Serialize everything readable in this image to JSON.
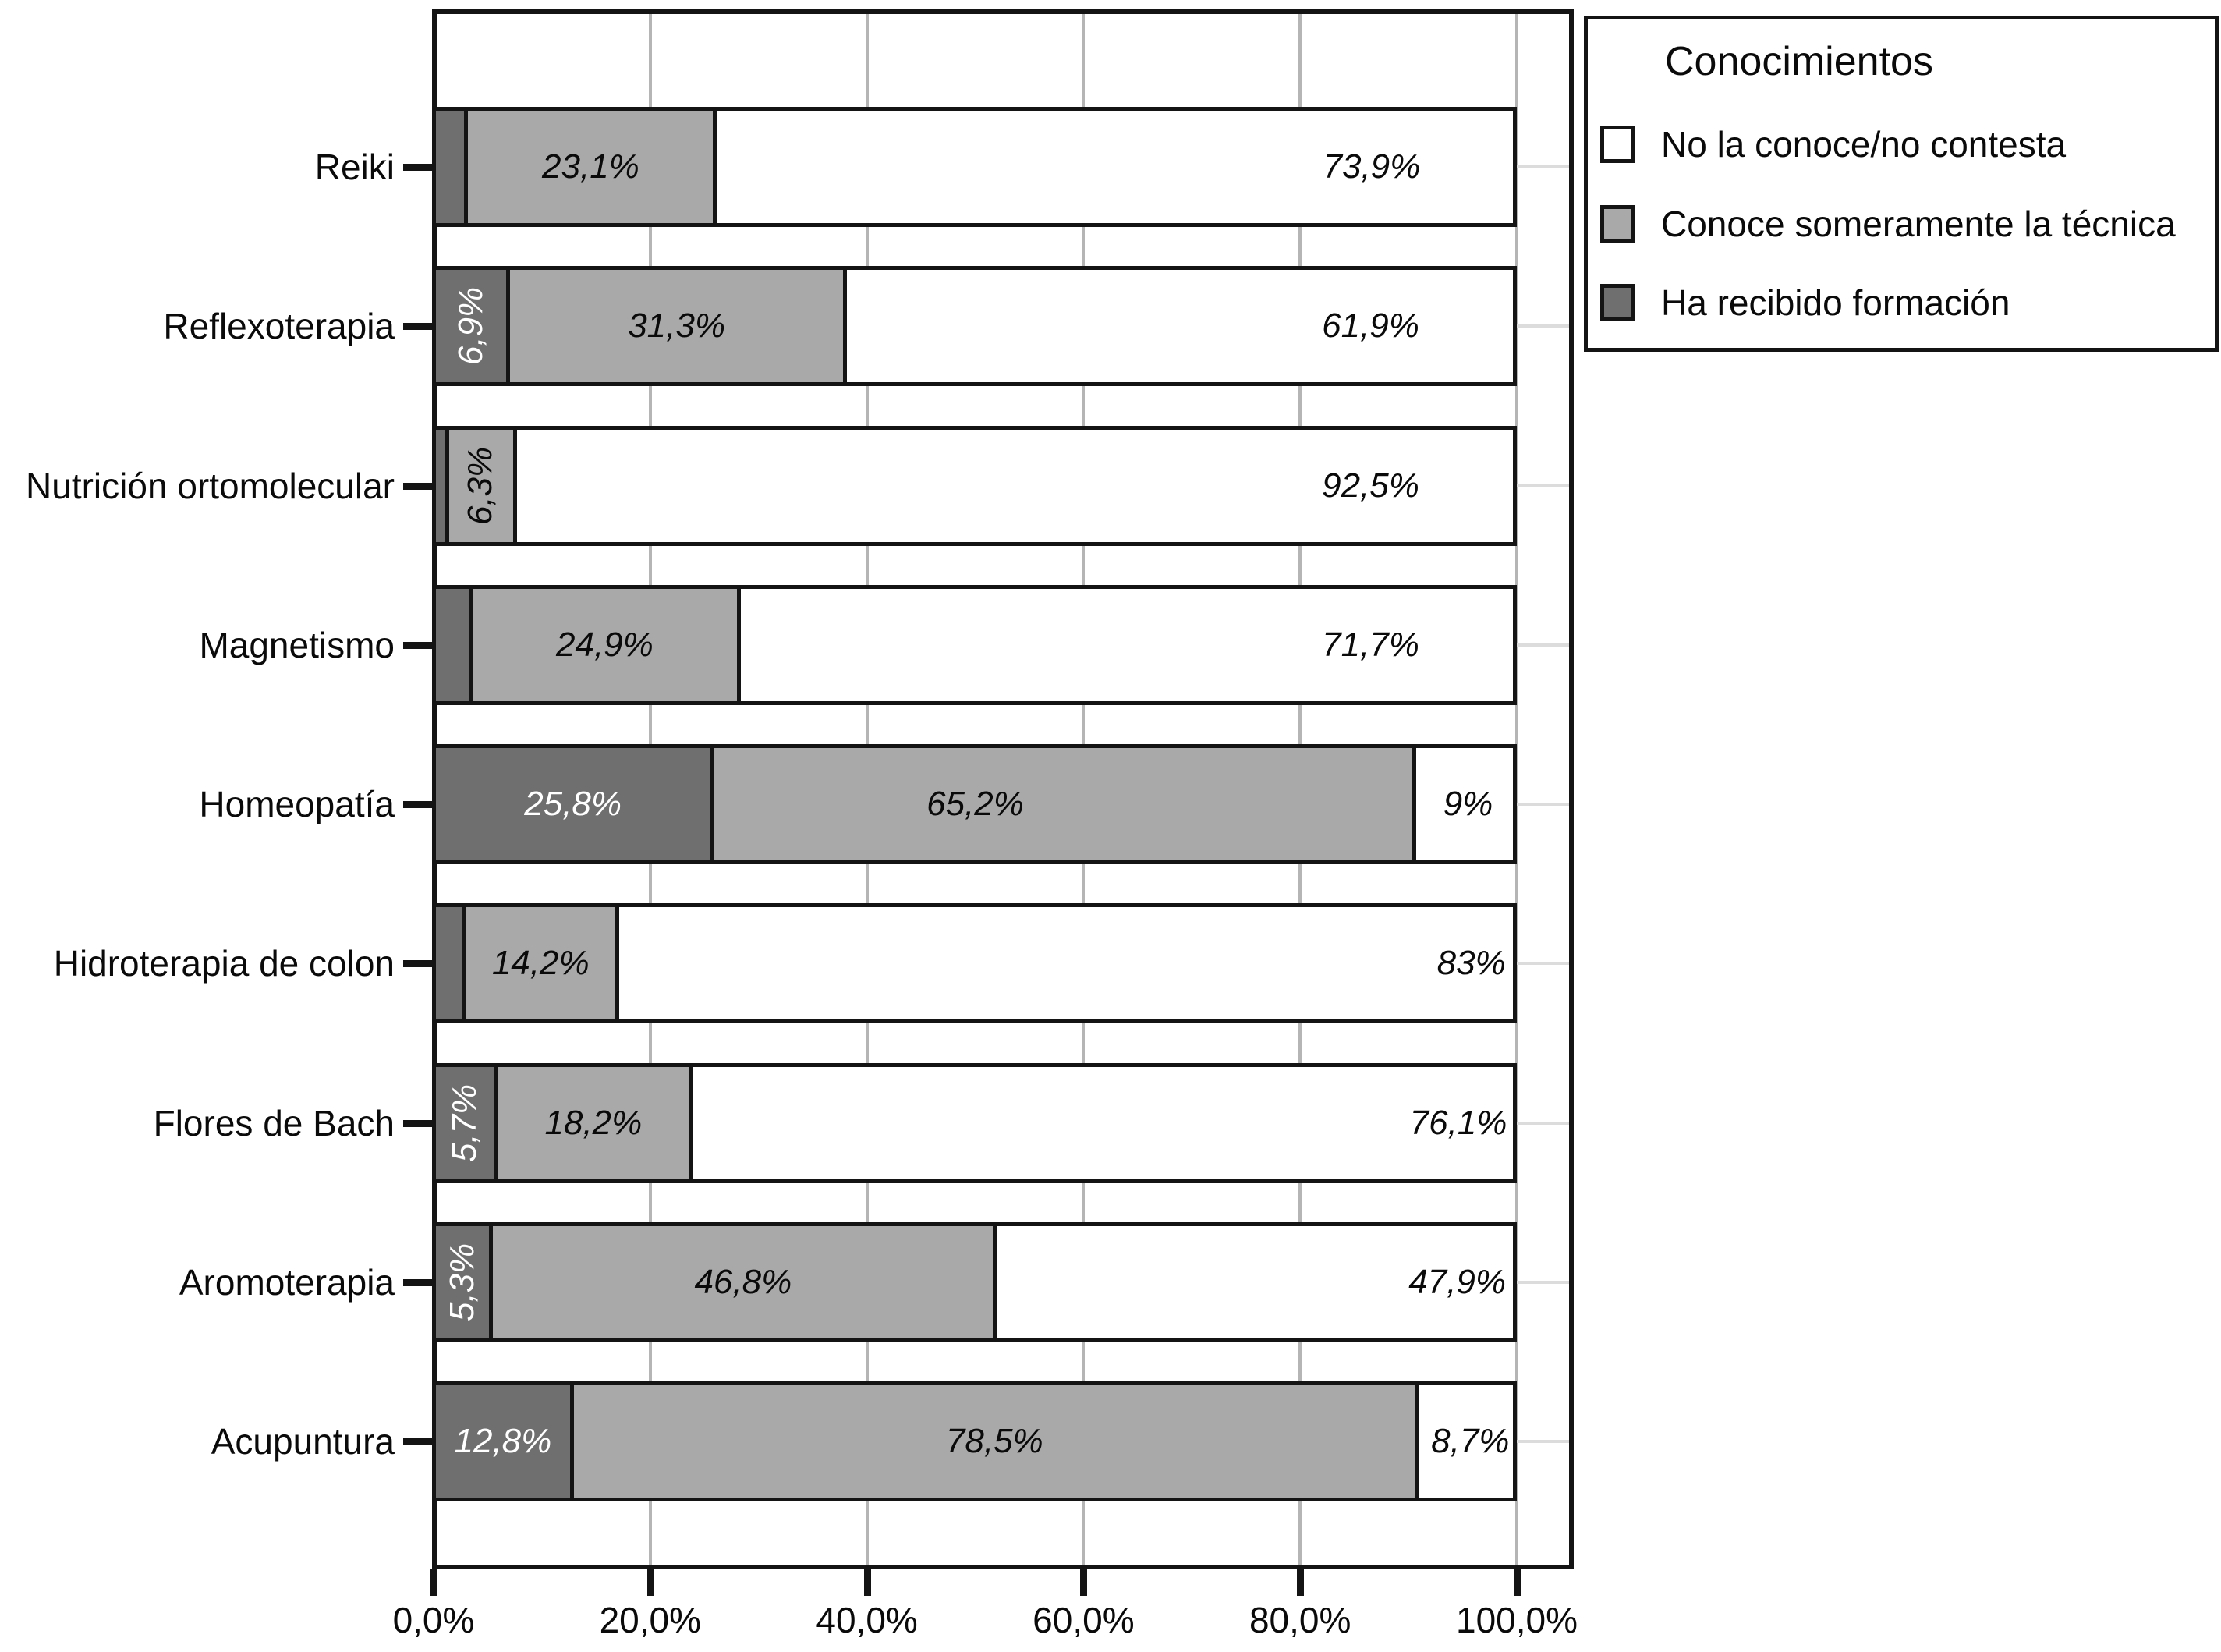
{
  "colors": {
    "dark": "#6f6f6f",
    "light": "#a9a9a9",
    "white": "#ffffff",
    "frame": "#141414",
    "grid_vertical": "#b5b5b5",
    "grid_horizontal": "#dcdcdc",
    "text": "#0a0a0a",
    "label_on_dark": "#ffffff"
  },
  "chart_data": {
    "type": "bar",
    "orientation": "horizontal",
    "stacked": true,
    "unit": "%",
    "grid": true,
    "legend": {
      "title": "Conocimientos",
      "position": "top-right",
      "items": [
        {
          "label": "No la conoce/no contesta",
          "color": "#ffffff"
        },
        {
          "label": "Conoce someramente la técnica",
          "color": "#a9a9a9"
        },
        {
          "label": "Ha recibido formación",
          "color": "#6f6f6f"
        }
      ]
    },
    "x_axis": {
      "range": [
        0,
        100
      ],
      "ticks": [
        0,
        20,
        40,
        60,
        80,
        100
      ],
      "tick_labels": [
        "0,0%",
        "20,0%",
        "40,0%",
        "60,0%",
        "80,0%",
        "100,0%"
      ]
    },
    "categories": [
      "Reiki",
      "Reflexoterapia",
      "Nutrición ortomolecular",
      "Magnetismo",
      "Homeopatía",
      "Hidroterapia de colon",
      "Flores de Bach",
      "Aromoterapia",
      "Acupuntura"
    ],
    "series": [
      {
        "name": "Ha recibido formación",
        "color": "#6f6f6f",
        "values": [
          3.0,
          6.9,
          1.2,
          3.4,
          25.8,
          2.8,
          5.7,
          5.3,
          12.8
        ]
      },
      {
        "name": "Conoce someramente la técnica",
        "color": "#a9a9a9",
        "values": [
          23.1,
          31.3,
          6.3,
          24.9,
          65.2,
          14.2,
          18.2,
          46.8,
          78.5
        ]
      },
      {
        "name": "No la conoce/no contesta",
        "color": "#ffffff",
        "values": [
          73.9,
          61.9,
          92.5,
          71.7,
          9,
          83,
          76.1,
          47.9,
          8.7
        ]
      }
    ],
    "rows": [
      {
        "category": "Reiki",
        "segments": [
          {
            "color": "dark",
            "value": 3.0,
            "label": ""
          },
          {
            "color": "light",
            "value": 23.1,
            "label": "23,1%"
          },
          {
            "color": "white",
            "value": 73.9,
            "label": "73,9%",
            "label_center_pct": 86.6
          }
        ]
      },
      {
        "category": "Reflexoterapia",
        "segments": [
          {
            "color": "dark",
            "value": 6.9,
            "label": "6,9%",
            "rotate": true
          },
          {
            "color": "light",
            "value": 31.3,
            "label": "31,3%"
          },
          {
            "color": "white",
            "value": 61.9,
            "label": "61,9%",
            "label_center_pct": 86.5
          }
        ]
      },
      {
        "category": "Nutrición ortomolecular",
        "segments": [
          {
            "color": "dark",
            "value": 1.2,
            "label": ""
          },
          {
            "color": "light",
            "value": 6.3,
            "label": "6,3%",
            "rotate": true
          },
          {
            "color": "white",
            "value": 92.5,
            "label": "92,5%",
            "label_center_pct": 86.5
          }
        ]
      },
      {
        "category": "Magnetismo",
        "segments": [
          {
            "color": "dark",
            "value": 3.4,
            "label": ""
          },
          {
            "color": "light",
            "value": 24.9,
            "label": "24,9%"
          },
          {
            "color": "white",
            "value": 71.7,
            "label": "71,7%",
            "label_center_pct": 86.5
          }
        ]
      },
      {
        "category": "Homeopatía",
        "segments": [
          {
            "color": "dark",
            "value": 25.8,
            "label": "25,8%"
          },
          {
            "color": "light",
            "value": 65.2,
            "label": "65,2%",
            "label_center_pct": 50.0
          },
          {
            "color": "white",
            "value": 9,
            "label": "9%",
            "label_center_pct": 95.5
          }
        ]
      },
      {
        "category": "Hidroterapia de colon",
        "segments": [
          {
            "color": "dark",
            "value": 2.8,
            "label": ""
          },
          {
            "color": "light",
            "value": 14.2,
            "label": "14,2%"
          },
          {
            "color": "white",
            "value": 83,
            "label": "83%",
            "label_center_pct": 95.8
          }
        ]
      },
      {
        "category": "Flores de Bach",
        "segments": [
          {
            "color": "dark",
            "value": 5.7,
            "label": "5,7%",
            "rotate": true
          },
          {
            "color": "light",
            "value": 18.2,
            "label": "18,2%"
          },
          {
            "color": "white",
            "value": 76.1,
            "label": "76,1%",
            "label_center_pct": 94.6
          }
        ]
      },
      {
        "category": "Aromoterapia",
        "segments": [
          {
            "color": "dark",
            "value": 5.3,
            "label": "5,3%",
            "rotate": true
          },
          {
            "color": "light",
            "value": 46.8,
            "label": "46,8%"
          },
          {
            "color": "white",
            "value": 47.9,
            "label": "47,9%",
            "label_center_pct": 94.5
          }
        ]
      },
      {
        "category": "Acupuntura",
        "segments": [
          {
            "color": "dark",
            "value": 12.8,
            "label": "12,8%"
          },
          {
            "color": "light",
            "value": 78.5,
            "label": "78,5%"
          },
          {
            "color": "white",
            "value": 8.7,
            "label": "8,7%",
            "label_center_pct": 95.7
          }
        ]
      }
    ]
  }
}
